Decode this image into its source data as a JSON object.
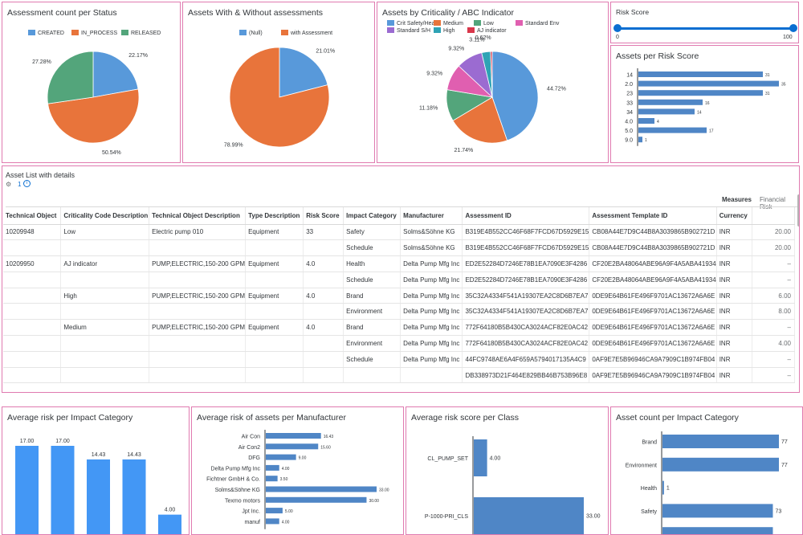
{
  "tiles": {
    "status": {
      "title": "Assessment count per Status"
    },
    "with_without": {
      "title": "Assets With & Without assessments"
    },
    "criticality": {
      "title": "Assets by Criticality / ABC Indicator"
    },
    "risk_filter": {
      "title": "Risk Score",
      "min_label": "0",
      "max_label": "100",
      "range": [
        0,
        100
      ]
    },
    "per_risk": {
      "title": "Assets per Risk Score"
    },
    "asset_list": {
      "title": "Asset List with details",
      "toolbar_icon": "settings-icon",
      "toolbar_count": "1",
      "toolbar_info": "info-icon"
    },
    "avg_impact": {
      "title": "Average risk per Impact Category"
    },
    "avg_manufacturer": {
      "title": "Average risk of assets per Manufacturer"
    },
    "avg_class": {
      "title": "Average risk score per Class"
    },
    "count_impact": {
      "title": "Asset count per Impact Category"
    }
  },
  "chart_data": [
    {
      "id": "status",
      "type": "pie",
      "title": "Assessment count per Status",
      "categories": [
        "CREATED",
        "IN_PROCESS",
        "RELEASED"
      ],
      "values": [
        22.17,
        50.54,
        27.28
      ],
      "labels": [
        "22.17%",
        "50.54%",
        "27.28%"
      ],
      "colors": [
        "#5899da",
        "#e8743b",
        "#53a57b"
      ],
      "legend_position": "top"
    },
    {
      "id": "with_without",
      "type": "pie",
      "title": "Assets With & Without assessments",
      "categories": [
        "(Null)",
        "with Assessment"
      ],
      "values": [
        21.01,
        78.99
      ],
      "labels": [
        "21.01%",
        "78.99%"
      ],
      "colors": [
        "#5899da",
        "#e8743b"
      ],
      "legend_position": "top"
    },
    {
      "id": "criticality",
      "type": "pie",
      "title": "Assets by Criticality / ABC Indicator",
      "categories": [
        "Crit Safety/Health",
        "Medium",
        "Low",
        "Standard Env",
        "Standard S/H",
        "High",
        "AJ indicator"
      ],
      "values": [
        44.72,
        21.74,
        11.18,
        9.32,
        9.32,
        3.11,
        0.62
      ],
      "labels": [
        "44.72%",
        "21.74%",
        "11.18%",
        "9.32%",
        "9.32%",
        "3.11%",
        "0.62%"
      ],
      "colors": [
        "#5899da",
        "#e8743b",
        "#53a57b",
        "#e05fb0",
        "#9b6bd1",
        "#2ea3b5",
        "#d9374b"
      ],
      "legend_position": "top"
    },
    {
      "id": "per_risk",
      "type": "bar",
      "orientation": "horizontal",
      "title": "Assets per Risk Score",
      "categories": [
        "14",
        "2.0",
        "23",
        "33",
        "34",
        "4.0",
        "5.0",
        "9.0"
      ],
      "values": [
        31,
        35,
        31,
        16,
        14,
        4,
        17,
        1
      ]
    },
    {
      "id": "avg_impact",
      "type": "bar",
      "orientation": "vertical",
      "title": "Average risk per Impact Category",
      "categories": [
        "",
        "",
        "",
        "",
        ""
      ],
      "values": [
        17.0,
        17.0,
        14.43,
        14.43,
        4.0
      ],
      "labels": [
        "17.00",
        "17.00",
        "14.43",
        "14.43",
        "4.00"
      ]
    },
    {
      "id": "avg_manufacturer",
      "type": "bar",
      "orientation": "horizontal",
      "title": "Average risk of assets per Manufacturer",
      "categories": [
        "Air Con",
        "Air Con2",
        "DFG",
        "Delta Pump Mfg Inc",
        "Fichtner GmbH & Co.",
        "Solms&Söhne KG",
        "Texmo motors",
        "Jpt Inc.",
        "manuf"
      ],
      "values": [
        16.43,
        15.6,
        9.0,
        4.0,
        3.5,
        33.0,
        30.0,
        5.0,
        4.0
      ],
      "labels": [
        "16.43",
        "15.60",
        "9.00",
        "4.00",
        "3.50",
        "33.00",
        "30.00",
        "5.00",
        "4.00"
      ]
    },
    {
      "id": "avg_class",
      "type": "bar",
      "orientation": "horizontal",
      "title": "Average risk score per Class",
      "categories": [
        "CL_PUMP_SET",
        "P-1000-PRI_CLS"
      ],
      "values": [
        4.0,
        33.0
      ],
      "labels": [
        "4.00",
        "33.00"
      ]
    },
    {
      "id": "count_impact",
      "type": "bar",
      "orientation": "horizontal",
      "title": "Asset count per Impact Category",
      "categories": [
        "Brand",
        "Environment",
        "Health",
        "Safety",
        ""
      ],
      "values": [
        77,
        77,
        1,
        73,
        73
      ],
      "labels": [
        "77",
        "77",
        "1",
        "73",
        ""
      ]
    }
  ],
  "table": {
    "group_header": "Measures",
    "group_sub": "Financial Risk",
    "columns": [
      "Technical Object",
      "Criticality Code Description",
      "Technical Object Description",
      "Type Description",
      "Risk Score",
      "Impact Category",
      "Manufacturer",
      "Assessment ID",
      "Assessment Template ID",
      "Currency",
      ""
    ],
    "rows": [
      [
        "10209948",
        "Low",
        "Electric pump 010",
        "Equipment",
        "33",
        "Safety",
        "Solms&Söhne KG",
        "B319E4B552CC46F68F7FCD67D5929E15",
        "CB08A44E7D9C44B8A3039865B902721D",
        "INR",
        "20.00"
      ],
      [
        "",
        "",
        "",
        "",
        "",
        "Schedule",
        "Solms&Söhne KG",
        "B319E4B552CC46F68F7FCD67D5929E15",
        "CB08A44E7D9C44B8A3039865B902721D",
        "INR",
        "20.00"
      ],
      [
        "10209950",
        "AJ indicator",
        "PUMP,ELECTRIC,150-200 GPM",
        "Equipment",
        "4.0",
        "Health",
        "Delta Pump Mfg Inc",
        "ED2E52284D7246E78B1EA7090E3F4286",
        "CF20E2BA48064ABE96A9F4A5ABA41934",
        "INR",
        "–"
      ],
      [
        "",
        "",
        "",
        "",
        "",
        "Schedule",
        "Delta Pump Mfg Inc",
        "ED2E52284D7246E78B1EA7090E3F4286",
        "CF20E2BA48064ABE96A9F4A5ABA41934",
        "INR",
        "–"
      ],
      [
        "",
        "High",
        "PUMP,ELECTRIC,150-200 GPM",
        "Equipment",
        "4.0",
        "Brand",
        "Delta Pump Mfg Inc",
        "35C32A4334F541A19307EA2C8D6B7EA7",
        "0DE9E64B61FE496F9701AC13672A6A6E",
        "INR",
        "6.00"
      ],
      [
        "",
        "",
        "",
        "",
        "",
        "Environment",
        "Delta Pump Mfg Inc",
        "35C32A4334F541A19307EA2C8D6B7EA7",
        "0DE9E64B61FE496F9701AC13672A6A6E",
        "INR",
        "8.00"
      ],
      [
        "",
        "Medium",
        "PUMP,ELECTRIC,150-200 GPM",
        "Equipment",
        "4.0",
        "Brand",
        "Delta Pump Mfg Inc",
        "772F64180B5B430CA3024ACF82E0AC42",
        "0DE9E64B61FE496F9701AC13672A6A6E",
        "INR",
        "–"
      ],
      [
        "",
        "",
        "",
        "",
        "",
        "Environment",
        "Delta Pump Mfg Inc",
        "772F64180B5B430CA3024ACF82E0AC42",
        "0DE9E64B61FE496F9701AC13672A6A6E",
        "INR",
        "4.00"
      ],
      [
        "",
        "",
        "",
        "",
        "",
        "Schedule",
        "Delta Pump Mfg Inc",
        "44FC9748AE6A4F659A5794017135A4C9",
        "0AF9E7E5B96946CA9A7909C1B974FB04",
        "INR",
        "–"
      ],
      [
        "",
        "",
        "",
        "",
        "",
        "",
        "",
        "DB338973D21F464E829BB46B753B96E8",
        "0AF9E7E5B96946CA9A7909C1B974FB04",
        "INR",
        "–"
      ]
    ]
  }
}
